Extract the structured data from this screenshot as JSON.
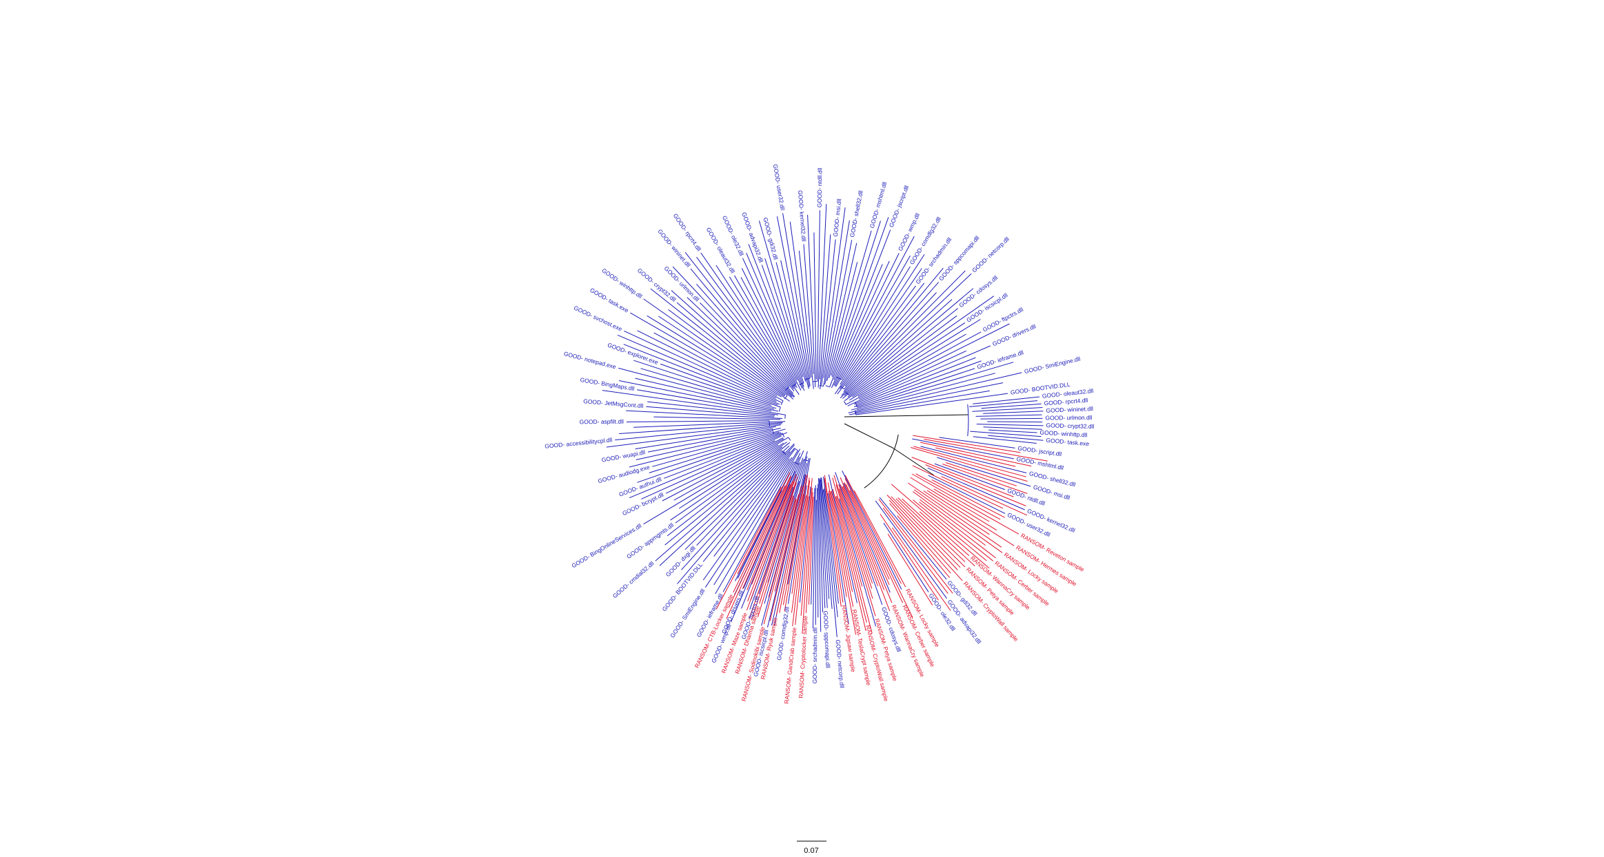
{
  "figure": {
    "type": "circular-phylogenetic-tree",
    "colors": {
      "good": "#1a1ab8",
      "ransomware": "#e0102a",
      "internal": "#000000"
    },
    "legend_scale_label": "0.07",
    "scale_bar_value": 0.07
  },
  "leaf_groups": [
    {
      "class": "good",
      "count": 210
    },
    {
      "class": "ransomware",
      "count": 70
    }
  ],
  "good_leaf_labels": [
    "GOOD- BOOTVID.DLL",
    "GOOD- SmiEngine.dll",
    "GOOD- ieframe.dll",
    "GOOD- drivers.dll",
    "GOOD- ftpctrs.dll",
    "GOOD- iscsicpl.dll",
    "GOOD- cdosys.dll",
    "GOOD- netcorp.dll",
    "GOOD- sppcomapi.dll",
    "GOOD- srchadmin.dll",
    "GOOD- comdlg32.dll",
    "GOOD- wmp.dll",
    "GOOD- jscript.dll",
    "GOOD- mshtml.dll",
    "GOOD- shell32.dll",
    "GOOD- msi.dll",
    "GOOD- ntdll.dll",
    "GOOD- kernel32.dll",
    "GOOD- user32.dll",
    "GOOD- gdi32.dll",
    "GOOD- advapi32.dll",
    "GOOD- ole32.dll",
    "GOOD- oleaut32.dll",
    "GOOD- rpcrt4.dll",
    "GOOD- wininet.dll",
    "GOOD- urlmon.dll",
    "GOOD- crypt32.dll",
    "GOOD- winhttp.dll",
    "GOOD- task.exe",
    "GOOD- svchost.exe",
    "GOOD- explorer.exe",
    "GOOD- notepad.exe",
    "GOOD- BingMaps.dll",
    "GOOD- JetMsgCont.dll",
    "GOOD- aspfilt.dll",
    "GOOD- accessibilitycpl.dll",
    "GOOD- wuapi.dll",
    "GOOD- audiodg.exe",
    "GOOD- authui.dll",
    "GOOD- bcrypt.dll",
    "GOOD- BingOnlineServices.dll",
    "GOOD- appmgmts.dll",
    "GOOD- cmdial32.dll",
    "GOOD- dxgi.dll"
  ],
  "ransomware_leaf_labels": [
    "RANSOM- Locky sample",
    "RANSOM- Cerber sample",
    "RANSOM- WannaCry sample",
    "RANSOM- Petya sample",
    "RANSOM- CryptoWall sample",
    "RANSOM- TeslaCrypt sample",
    "RANSOM- Jigsaw sample",
    "RANSOM- Cryptolocker sample",
    "RANSOM- GandCrab sample",
    "RANSOM- Ryuk sample",
    "RANSOM- Sodinokibi sample",
    "RANSOM- Dharma sample",
    "RANSOM- Maze sample",
    "RANSOM- CTB-Locker sample",
    "RANSOM- Reveton sample",
    "RANSOM- Hermes sample"
  ]
}
